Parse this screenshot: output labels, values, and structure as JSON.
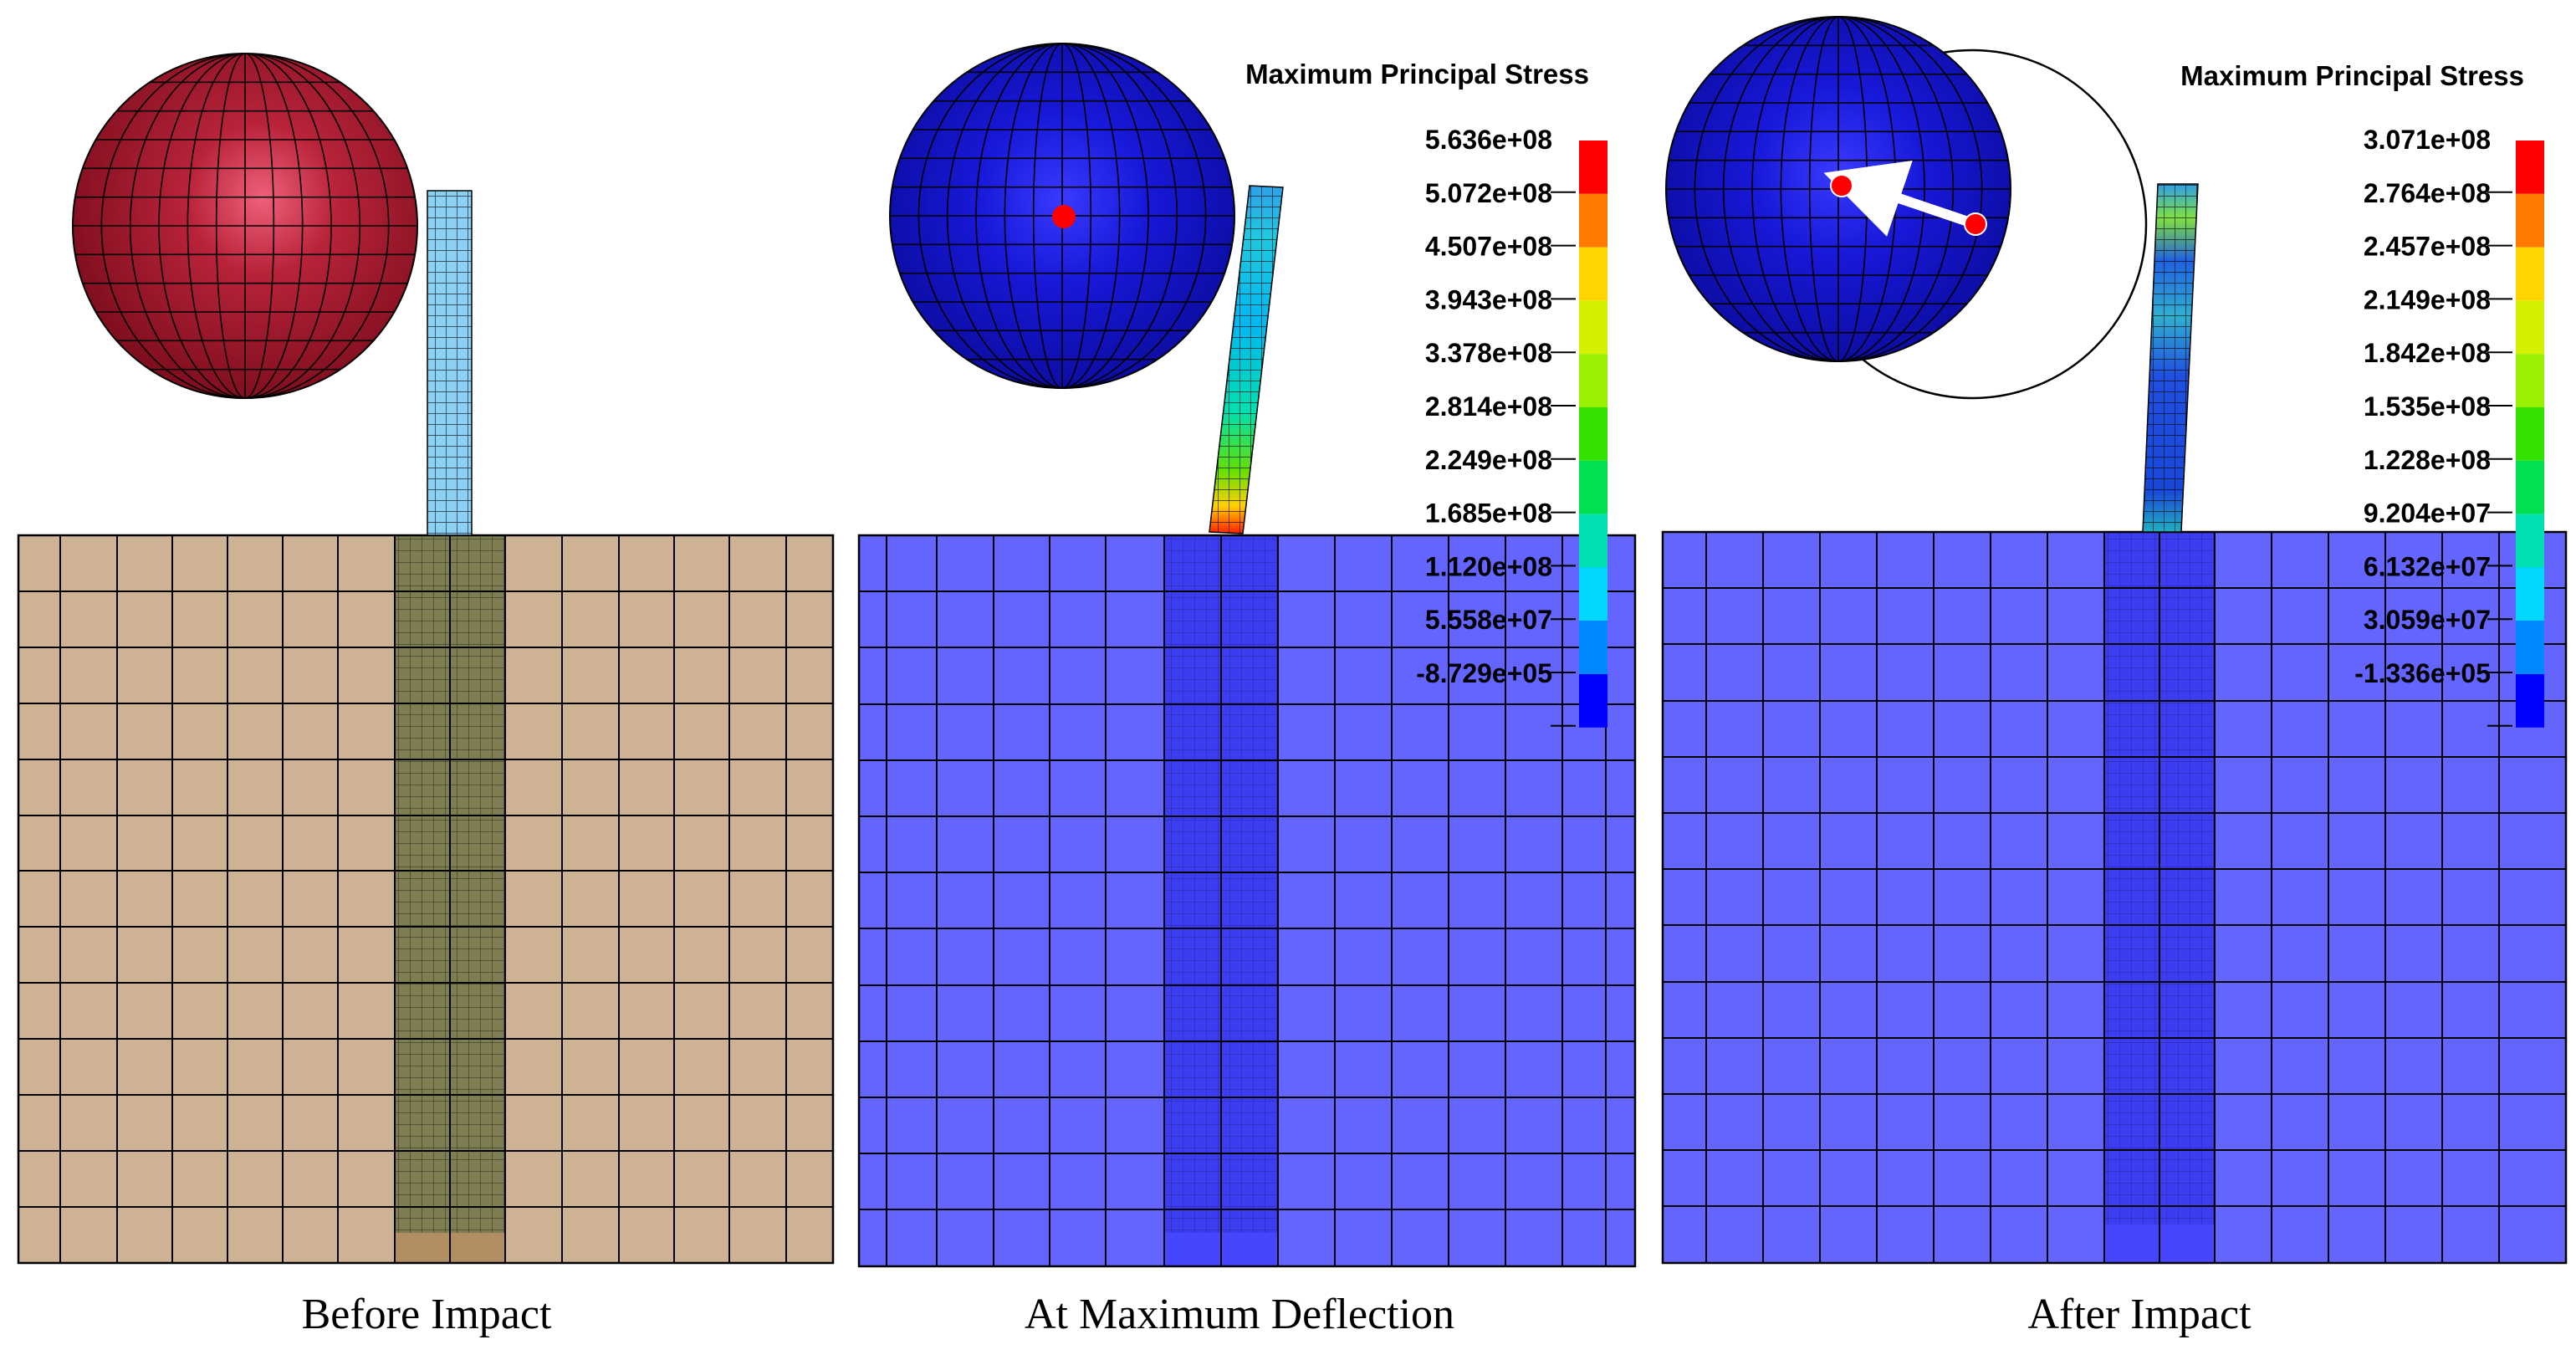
{
  "figure": {
    "panels": [
      {
        "id": "before",
        "caption": "Before Impact"
      },
      {
        "id": "max",
        "caption": "At Maximum Deflection"
      },
      {
        "id": "after",
        "caption": "After Impact"
      }
    ],
    "legends": [
      {
        "title": "Maximum Principal Stress",
        "values": [
          "5.636e+08",
          "5.072e+08",
          "4.507e+08",
          "3.943e+08",
          "3.378e+08",
          "2.814e+08",
          "2.249e+08",
          "1.685e+08",
          "1.120e+08",
          "5.558e+07",
          "-8.729e+05"
        ]
      },
      {
        "title": "Maximum Principal Stress",
        "values": [
          "3.071e+08",
          "2.764e+08",
          "2.457e+08",
          "2.149e+08",
          "1.842e+08",
          "1.535e+08",
          "1.228e+08",
          "9.204e+07",
          "6.132e+07",
          "3.059e+07",
          "-1.336e+05"
        ]
      }
    ],
    "colormap": [
      "#ff0000",
      "#ff7a00",
      "#ffd400",
      "#d4f000",
      "#99f000",
      "#33e000",
      "#00e050",
      "#00e0b0",
      "#00d8ff",
      "#0088ff",
      "#0000ff"
    ],
    "colors": {
      "sphere_before": "#a8162c",
      "sphere_deformed": "#1414d4",
      "soil_before": "#cdb394",
      "soil_after": "#6464ff",
      "pile_region_before": "#7e7e52",
      "pile_region_after": "#3c3cf0",
      "pile_before": "#8cd0f4",
      "marker": "#ff0000"
    }
  }
}
